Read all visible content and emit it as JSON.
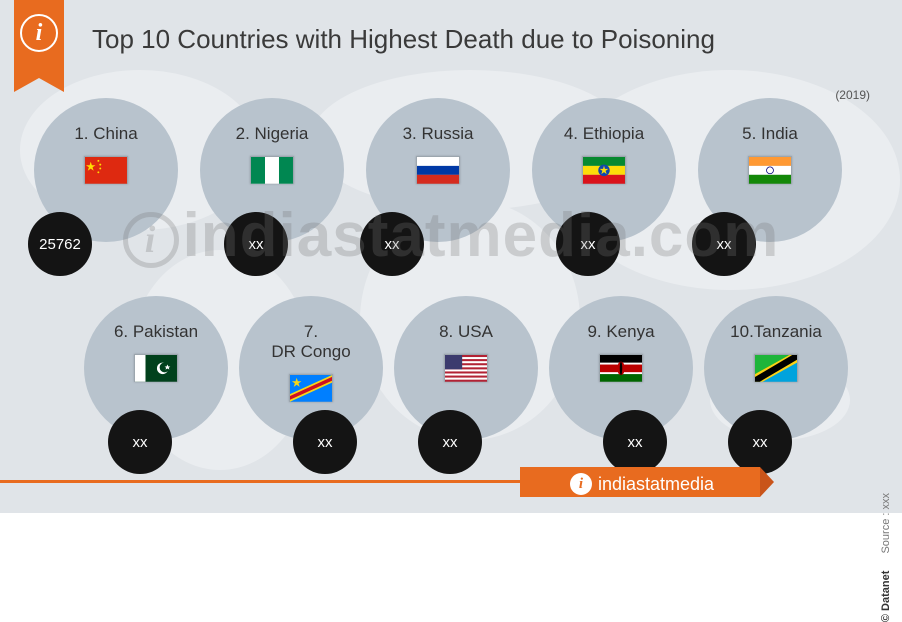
{
  "title": "Top 10 Countries with Highest Death due to Poisoning",
  "year_note": "(2019)",
  "colors": {
    "background": "#e0e4e8",
    "bubble": "#b8c3cd",
    "value_bg": "#141414",
    "value_text": "#ffffff",
    "accent": "#e86b1f",
    "title_text": "#3a3a3a"
  },
  "countries": [
    {
      "rank": 1,
      "name": "China",
      "value": "25762",
      "flag_key": "china"
    },
    {
      "rank": 2,
      "name": "Nigeria",
      "value": "xx",
      "flag_key": "nigeria"
    },
    {
      "rank": 3,
      "name": "Russia",
      "value": "xx",
      "flag_key": "russia"
    },
    {
      "rank": 4,
      "name": "Ethiopia",
      "value": "xx",
      "flag_key": "ethiopia"
    },
    {
      "rank": 5,
      "name": "India",
      "value": "xx",
      "flag_key": "india"
    },
    {
      "rank": 6,
      "name": "Pakistan",
      "value": "xx",
      "flag_key": "pakistan"
    },
    {
      "rank": 7,
      "name": "DR Congo",
      "value": "xx",
      "flag_key": "drcongo"
    },
    {
      "rank": 8,
      "name": "USA",
      "value": "xx",
      "flag_key": "usa"
    },
    {
      "rank": 9,
      "name": "Kenya",
      "value": "xx",
      "flag_key": "kenya"
    },
    {
      "rank": 10,
      "name": "Tanzania",
      "value": "xx",
      "flag_key": "tanzania"
    }
  ],
  "watermark_text": "indiastatmedia.com",
  "brand_text": "indiastatmedia",
  "copyright_text": "© Datanet",
  "source_text": "Source : xxx",
  "flag_svgs": {
    "china": "<svg viewBox='0 0 44 28'><rect width='44' height='28' fill='#de2910'/><polygon points='6,5 7.2,8.6 11,8.6 7.9,10.8 9.1,14.4 6,12.2 2.9,14.4 4.1,10.8 1,8.6 4.8,8.6' fill='#ffde00'/><circle cx='14' cy='4' r='1' fill='#ffde00'/><circle cx='16' cy='8' r='1' fill='#ffde00'/><circle cx='16' cy='12' r='1' fill='#ffde00'/><circle cx='14' cy='16' r='1' fill='#ffde00'/></svg>",
    "nigeria": "<svg viewBox='0 0 44 28'><rect width='44' height='28' fill='#fff'/><rect width='14.67' height='28' fill='#008751'/><rect x='29.33' width='14.67' height='28' fill='#008751'/></svg>",
    "russia": "<svg viewBox='0 0 44 28'><rect width='44' height='9.33' fill='#fff'/><rect y='9.33' width='44' height='9.33' fill='#0039a6'/><rect y='18.66' width='44' height='9.34' fill='#d52b1e'/></svg>",
    "ethiopia": "<svg viewBox='0 0 44 28'><rect width='44' height='9.33' fill='#078930'/><rect y='9.33' width='44' height='9.33' fill='#fcdd09'/><rect y='18.66' width='44' height='9.34' fill='#da121a'/><circle cx='22' cy='14' r='6' fill='#0f47af'/><polygon points='22,9 23,12.5 26.5,12.5 23.7,14.6 24.8,18 22,15.9 19.2,18 20.3,14.6 17.5,12.5 21,12.5' fill='#fcdd09'/></svg>",
    "india": "<svg viewBox='0 0 44 28'><rect width='44' height='9.33' fill='#ff9933'/><rect y='9.33' width='44' height='9.33' fill='#fff'/><rect y='18.66' width='44' height='9.34' fill='#138808'/><circle cx='22' cy='14' r='3.6' fill='none' stroke='#000080' stroke-width='0.8'/></svg>",
    "pakistan": "<svg viewBox='0 0 44 28'><rect width='44' height='28' fill='#01411c'/><rect width='11' height='28' fill='#fff'/><circle cx='29' cy='14' r='6' fill='#fff'/><circle cx='31' cy='13' r='5.2' fill='#01411c'/><polygon points='34,10 35,12 37,12 35.4,13.3 36,15.3 34,14.1 32,15.3 32.6,13.3 31,12 33,12' fill='#fff'/></svg>",
    "drcongo": "<svg viewBox='0 0 44 28'><rect width='44' height='28' fill='#007fff'/><polygon points='0,28 0,20 44,0 44,8' fill='#f7d618'/><polygon points='0,26 0,22 44,2 44,6' fill='#ce1021'/><polygon points='7,3 8.2,6.6 12,6.6 8.9,8.8 10.1,12.4 7,10.2 3.9,12.4 5.1,8.8 2,6.6 5.8,6.6' fill='#f7d618'/></svg>",
    "usa": "<svg viewBox='0 0 44 28'><rect width='44' height='28' fill='#b22234'/><g fill='#fff'><rect y='2.15' width='44' height='2.15'/><rect y='6.46' width='44' height='2.15'/><rect y='10.77' width='44' height='2.15'/><rect y='15.08' width='44' height='2.15'/><rect y='19.38' width='44' height='2.15'/><rect y='23.69' width='44' height='2.15'/></g><rect width='18' height='15' fill='#3c3b6e'/></svg>",
    "kenya": "<svg viewBox='0 0 44 28'><rect width='44' height='28' fill='#006600'/><rect width='44' height='18.5' fill='#bb0000'/><rect width='44' height='9' fill='#000'/><rect y='8' width='44' height='2' fill='#fff'/><rect y='18' width='44' height='2' fill='#fff'/><ellipse cx='22' cy='14' rx='4' ry='7' fill='#bb0000'/><ellipse cx='22' cy='14' rx='1.3' ry='7' fill='#000'/></svg>",
    "tanzania": "<svg viewBox='0 0 44 28'><polygon points='0,0 44,0 0,28' fill='#1eb53a'/><polygon points='44,0 44,28 0,28' fill='#00a3dd'/><polygon points='0,20 0,28 8,28 44,8 44,0 36,0' fill='#fcd116'/><polygon points='0,23 0,28 5,28 44,5 44,0 39,0' fill='#000'/></svg>"
  }
}
